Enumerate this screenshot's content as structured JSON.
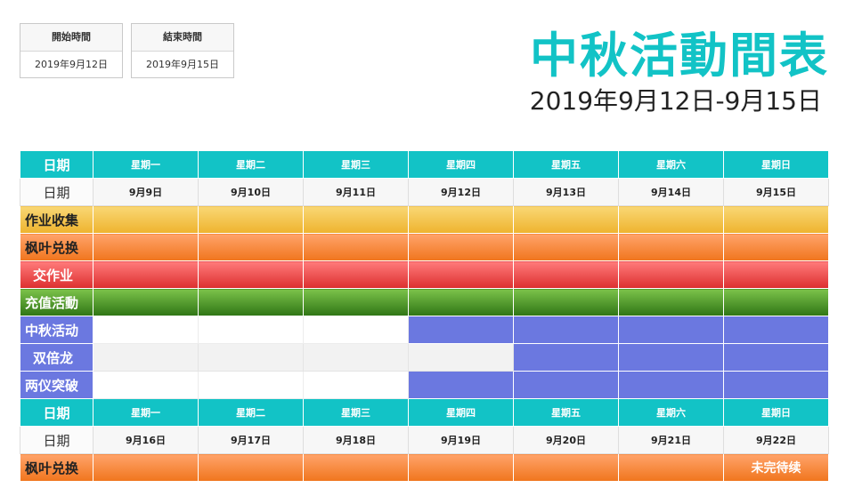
{
  "info": {
    "start_label": "開始時間",
    "start_value": "2019年9月12日",
    "end_label": "結束時間",
    "end_value": "2019年9月15日"
  },
  "title": "中秋活動間表",
  "subtitle": "2019年9月12日-9月15日",
  "week_label": "日期",
  "date_label": "日期",
  "weekdays": [
    "星期一",
    "星期二",
    "星期三",
    "星期四",
    "星期五",
    "星期六",
    "星期日"
  ],
  "week1_dates": [
    "9月9日",
    "9月10日",
    "9月11日",
    "9月12日",
    "9月13日",
    "9月14日",
    "9月15日"
  ],
  "week2_dates": [
    "9月16日",
    "9月17日",
    "9月18日",
    "9月19日",
    "9月20日",
    "9月21日",
    "9月22日"
  ],
  "activities": [
    {
      "name": "作业收集",
      "color": "#eeb32e",
      "active_days": [
        1,
        1,
        1,
        1,
        1,
        1,
        1
      ]
    },
    {
      "name": "枫叶兑换",
      "color": "#f0751d",
      "active_days": [
        1,
        1,
        1,
        1,
        1,
        1,
        1
      ]
    },
    {
      "name": "交作业",
      "color": "#dc2f2f",
      "active_days": [
        1,
        1,
        1,
        1,
        1,
        1,
        1
      ]
    },
    {
      "name": "充值活動",
      "color": "#2f7515",
      "active_days": [
        1,
        1,
        1,
        1,
        1,
        1,
        1
      ]
    },
    {
      "name": "中秋活动",
      "color": "#6b78e0",
      "active_days": [
        0,
        0,
        0,
        1,
        1,
        1,
        1
      ]
    },
    {
      "name": "双倍龙",
      "color": "#6b78e0",
      "active_days": [
        0,
        0,
        0,
        0,
        1,
        1,
        1
      ]
    },
    {
      "name": "两仪突破",
      "color": "#6b78e0",
      "active_days": [
        0,
        0,
        0,
        1,
        1,
        1,
        1
      ]
    }
  ],
  "week2_activity": {
    "name": "枫叶兑换",
    "color": "#f0751d",
    "note": "未完待续"
  }
}
